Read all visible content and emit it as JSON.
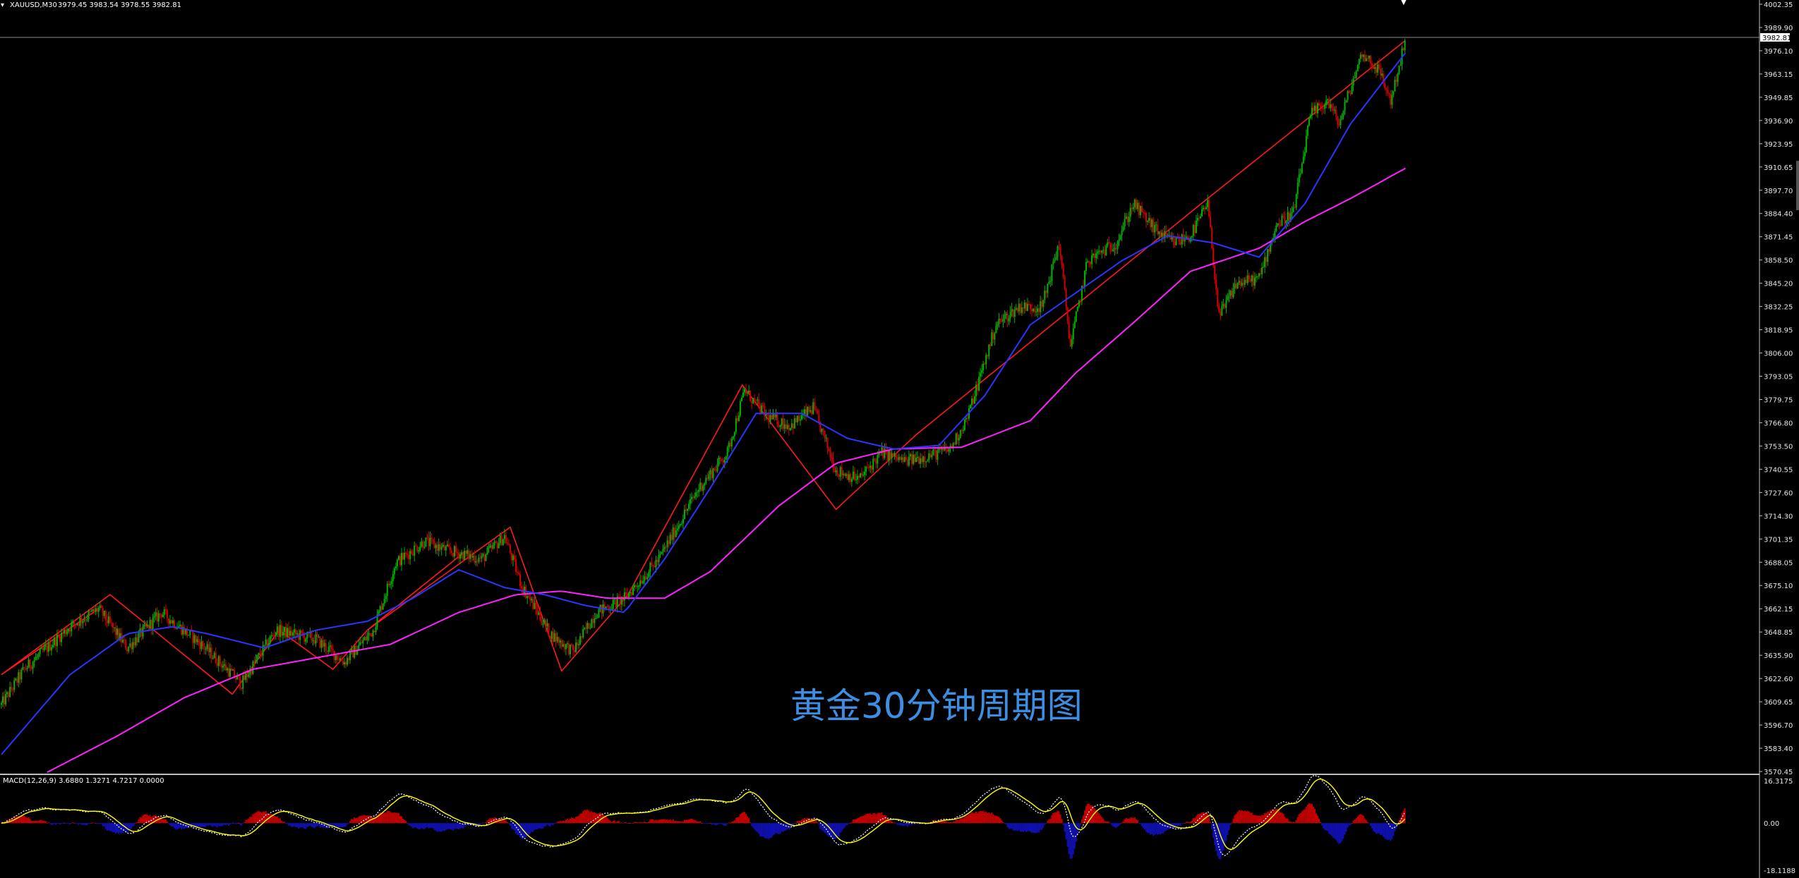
{
  "header": {
    "symbol_text": "XAUUSD,M30",
    "ohlc_text": "3979.45 3983.54 3978.55 3982.81",
    "macd_text": "MACD(12,26,9) 3.6880 1.3271 4.7217 0.0000"
  },
  "overlay_text": "黄金30分钟周期图",
  "colors": {
    "background": "#000000",
    "candle_up": "#00b300",
    "candle_down": "#d40000",
    "ma_fast": "#2a35ff",
    "ma_slow": "#ff22ff",
    "trend_lines": "#ff1a1a",
    "macd_hist_up": "#c30000",
    "macd_hist_down": "#1010b0",
    "macd_line": "#ffffff",
    "signal_line": "#ffff00",
    "axis_text": "#e6e6e6",
    "price_marker_line": "#8a8a8a",
    "overlay_text": "#3d8ee0"
  },
  "price_axis": {
    "ticks": [
      "4002.35",
      "3989.90",
      "3976.10",
      "3963.15",
      "3949.85",
      "3936.90",
      "3923.95",
      "3910.65",
      "3897.70",
      "3884.40",
      "3871.45",
      "3858.50",
      "3845.20",
      "3832.25",
      "3818.95",
      "3806.00",
      "3793.05",
      "3779.75",
      "3766.80",
      "3753.50",
      "3740.55",
      "3727.60",
      "3714.30",
      "3701.35",
      "3688.05",
      "3675.10",
      "3662.15",
      "3648.85",
      "3635.90",
      "3622.60",
      "3609.65",
      "3596.70",
      "3583.40",
      "3570.45"
    ],
    "current_price": "3982.81"
  },
  "macd_axis": {
    "ticks": [
      "16.3175",
      "0.00",
      "-18.1188"
    ]
  },
  "chart_data": [
    {
      "type": "candlestick",
      "symbol": "XAUUSD",
      "timeframe": "M30",
      "last_bar": {
        "open": 3979.45,
        "high": 3983.54,
        "low": 3978.55,
        "close": 3982.81
      },
      "ylim": [
        3570.45,
        4002.35
      ],
      "price_path": [
        [
          0,
          3608
        ],
        [
          20,
          3628
        ],
        [
          60,
          3652
        ],
        [
          85,
          3662
        ],
        [
          110,
          3640
        ],
        [
          140,
          3660
        ],
        [
          175,
          3642
        ],
        [
          210,
          3620
        ],
        [
          240,
          3650
        ],
        [
          275,
          3645
        ],
        [
          300,
          3632
        ],
        [
          325,
          3650
        ],
        [
          345,
          3688
        ],
        [
          370,
          3700
        ],
        [
          390,
          3695
        ],
        [
          420,
          3690
        ],
        [
          440,
          3703
        ],
        [
          455,
          3675
        ],
        [
          480,
          3648
        ],
        [
          500,
          3638
        ],
        [
          520,
          3660
        ],
        [
          545,
          3668
        ],
        [
          575,
          3690
        ],
        [
          610,
          3730
        ],
        [
          635,
          3750
        ],
        [
          650,
          3785
        ],
        [
          670,
          3770
        ],
        [
          690,
          3765
        ],
        [
          710,
          3775
        ],
        [
          730,
          3740
        ],
        [
          750,
          3735
        ],
        [
          770,
          3750
        ],
        [
          790,
          3745
        ],
        [
          810,
          3748
        ],
        [
          830,
          3752
        ],
        [
          845,
          3770
        ],
        [
          870,
          3822
        ],
        [
          890,
          3832
        ],
        [
          910,
          3832
        ],
        [
          925,
          3868
        ],
        [
          935,
          3810
        ],
        [
          950,
          3858
        ],
        [
          975,
          3868
        ],
        [
          990,
          3890
        ],
        [
          1010,
          3875
        ],
        [
          1025,
          3868
        ],
        [
          1040,
          3872
        ],
        [
          1055,
          3890
        ],
        [
          1065,
          3826
        ],
        [
          1080,
          3845
        ],
        [
          1100,
          3848
        ],
        [
          1115,
          3878
        ],
        [
          1130,
          3885
        ],
        [
          1145,
          3940
        ],
        [
          1160,
          3948
        ],
        [
          1170,
          3935
        ],
        [
          1190,
          3975
        ],
        [
          1205,
          3965
        ],
        [
          1215,
          3948
        ],
        [
          1228,
          3982
        ]
      ],
      "ma_fast_path": [
        [
          0,
          3580
        ],
        [
          60,
          3625
        ],
        [
          110,
          3648
        ],
        [
          150,
          3652
        ],
        [
          180,
          3648
        ],
        [
          230,
          3640
        ],
        [
          275,
          3650
        ],
        [
          320,
          3655
        ],
        [
          360,
          3668
        ],
        [
          400,
          3684
        ],
        [
          440,
          3674
        ],
        [
          475,
          3670
        ],
        [
          510,
          3664
        ],
        [
          545,
          3660
        ],
        [
          580,
          3690
        ],
        [
          620,
          3730
        ],
        [
          660,
          3772
        ],
        [
          700,
          3772
        ],
        [
          740,
          3758
        ],
        [
          780,
          3752
        ],
        [
          820,
          3754
        ],
        [
          860,
          3782
        ],
        [
          900,
          3822
        ],
        [
          940,
          3840
        ],
        [
          980,
          3858
        ],
        [
          1020,
          3872
        ],
        [
          1060,
          3868
        ],
        [
          1100,
          3860
        ],
        [
          1140,
          3890
        ],
        [
          1180,
          3935
        ],
        [
          1210,
          3960
        ],
        [
          1228,
          3975
        ]
      ],
      "ma_slow_path": [
        [
          40,
          3570
        ],
        [
          100,
          3590
        ],
        [
          160,
          3612
        ],
        [
          220,
          3628
        ],
        [
          280,
          3635
        ],
        [
          340,
          3642
        ],
        [
          400,
          3660
        ],
        [
          450,
          3670
        ],
        [
          490,
          3672
        ],
        [
          530,
          3668
        ],
        [
          580,
          3668
        ],
        [
          620,
          3683
        ],
        [
          680,
          3720
        ],
        [
          730,
          3744
        ],
        [
          780,
          3752
        ],
        [
          840,
          3753
        ],
        [
          900,
          3768
        ],
        [
          940,
          3795
        ],
        [
          990,
          3823
        ],
        [
          1040,
          3852
        ],
        [
          1100,
          3865
        ],
        [
          1140,
          3880
        ],
        [
          1180,
          3893
        ],
        [
          1228,
          3910
        ]
      ],
      "trend_lines": [
        [
          [
            0,
            3625
          ],
          [
            95,
            3670
          ],
          [
            202,
            3614
          ],
          [
            243,
            3650
          ],
          [
            290,
            3628
          ],
          [
            320,
            3650
          ],
          [
            445,
            3708
          ],
          [
            490,
            3627
          ],
          [
            548,
            3670
          ],
          [
            648,
            3788
          ],
          [
            730,
            3718
          ],
          [
            800,
            3760
          ],
          [
            1055,
            3893
          ],
          [
            1228,
            3982
          ]
        ],
        [
          [
            0,
            3625
          ],
          [
            85,
            3662
          ]
        ],
        [
          [
            320,
            3650
          ],
          [
            405,
            3694
          ]
        ]
      ]
    },
    {
      "type": "histogram+line",
      "name": "MACD(12,26,9)",
      "values": {
        "macd": 3.688,
        "signal": 1.3271,
        "histogram": 4.7217,
        "zero": 0.0
      },
      "ylim": [
        -18.1188,
        16.3175
      ]
    }
  ]
}
